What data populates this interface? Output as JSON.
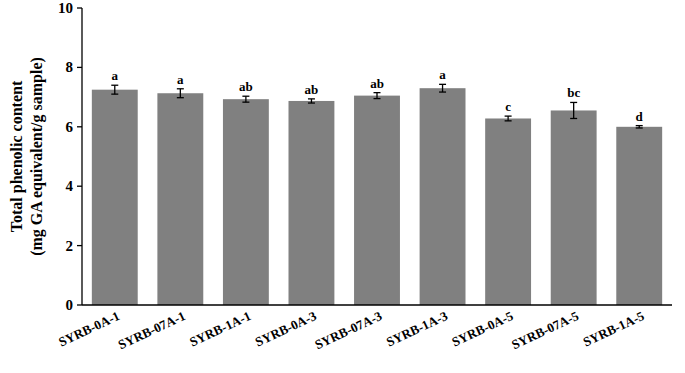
{
  "chart_data": {
    "type": "bar",
    "y_label": [
      "Total phenolic content",
      "(mg GA equivalent/g sample)"
    ],
    "categories": [
      "SYRB-0A-1",
      "SYRB-07A-1",
      "SYRB-1A-1",
      "SYRB-0A-3",
      "SYRB-07A-3",
      "SYRB-1A-3",
      "SYRB-0A-5",
      "SYRB-07A-5",
      "SYRB-1A-5"
    ],
    "values": [
      7.25,
      7.13,
      6.93,
      6.87,
      7.05,
      7.3,
      6.28,
      6.55,
      6.0
    ],
    "errors": [
      0.15,
      0.15,
      0.1,
      0.07,
      0.1,
      0.13,
      0.08,
      0.27,
      0.04
    ],
    "significance_letters": [
      "a",
      "a",
      "ab",
      "ab",
      "ab",
      "a",
      "c",
      "bc",
      "d"
    ],
    "color": "#808080",
    "ylim": [
      0,
      10
    ],
    "yticks": [
      0,
      2,
      4,
      6,
      8,
      10
    ],
    "grid": false
  }
}
